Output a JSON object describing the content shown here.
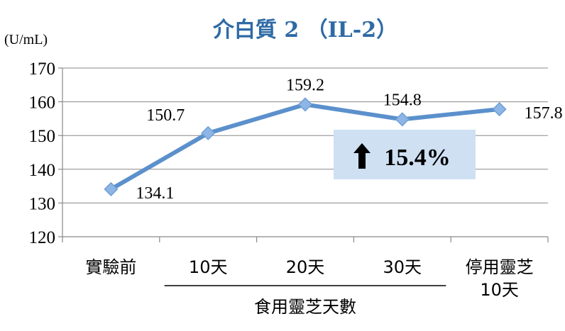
{
  "chart_data": {
    "type": "line",
    "title": "介白質 2 （IL-2）",
    "unit_label": "(U/mL)",
    "categories": [
      [
        "實驗前"
      ],
      [
        "10天"
      ],
      [
        "20天"
      ],
      [
        "30天"
      ],
      [
        "停用靈芝",
        "10天"
      ]
    ],
    "group_label": "食用靈芝天數",
    "series": [
      {
        "values": [
          134.1,
          150.7,
          159.2,
          154.8,
          157.8
        ]
      }
    ],
    "data_labels": [
      "134.1",
      "150.7",
      "159.2",
      "154.8",
      "157.8"
    ],
    "ylim": [
      120,
      170
    ],
    "yticks": [
      120,
      130,
      140,
      150,
      160,
      170
    ],
    "grid": true,
    "annotation": {
      "arrow": "↑",
      "text": "15.4%"
    },
    "colors": {
      "line": "#5b90cc",
      "marker": "#8db5e5",
      "title": "#2e6aa5",
      "annotation_box": "#cfe0f3",
      "grid": "#8a8a8a"
    }
  }
}
